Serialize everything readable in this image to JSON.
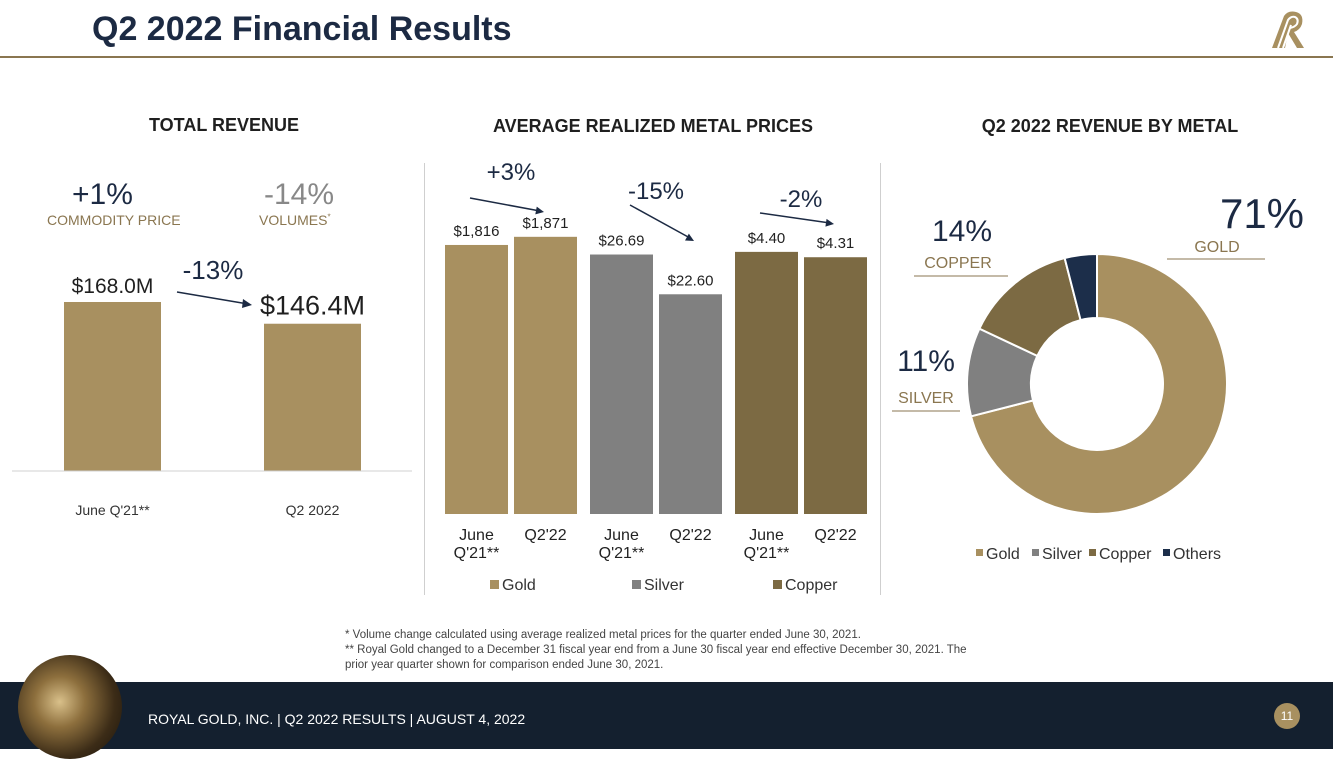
{
  "header": {
    "title": "Q2 2022 Financial Results",
    "logo_icon": "royal-gold-logo-icon"
  },
  "colors": {
    "gold": "#a89060",
    "silver": "#808080",
    "copper": "#7c6a43",
    "others": "#1c2e4a",
    "navy": "#1c2a43"
  },
  "total_revenue": {
    "title": "TOTAL REVENUE",
    "commodity_change": "+1%",
    "commodity_label": "COMMODITY PRICE",
    "volume_change": "-14%",
    "volume_label": "VOLUMES",
    "volume_marker": "*",
    "overall_change": "-13%"
  },
  "metal_prices": {
    "title": "AVERAGE REALIZED METAL PRICES"
  },
  "revenue_by_metal": {
    "title": "Q2 2022 REVENUE BY METAL",
    "callouts": [
      {
        "pct": "71%",
        "label": "GOLD"
      },
      {
        "pct": "14%",
        "label": "COPPER"
      },
      {
        "pct": "11%",
        "label": "SILVER"
      }
    ]
  },
  "chart_data": [
    {
      "type": "bar",
      "title": "TOTAL REVENUE",
      "categories": [
        "June Q'21**",
        "Q2 2022"
      ],
      "values": [
        168.0,
        146.4
      ],
      "value_labels": [
        "$168.0M",
        "$146.4M"
      ],
      "unit": "$M",
      "ylim": [
        0,
        200
      ]
    },
    {
      "type": "bar",
      "title": "AVERAGE REALIZED METAL PRICES",
      "groups": [
        {
          "name": "Gold",
          "categories": [
            "June Q'21**",
            "Q2'22"
          ],
          "values": [
            1816,
            1871
          ],
          "value_labels": [
            "$1,816",
            "$1,871"
          ],
          "change": "+3%"
        },
        {
          "name": "Silver",
          "categories": [
            "June Q'21**",
            "Q2'22"
          ],
          "values": [
            26.69,
            22.6
          ],
          "value_labels": [
            "$26.69",
            "$22.60"
          ],
          "change": "-15%"
        },
        {
          "name": "Copper",
          "categories": [
            "June Q'21**",
            "Q2'22"
          ],
          "values": [
            4.4,
            4.31
          ],
          "value_labels": [
            "$4.40",
            "$4.31"
          ],
          "change": "-2%"
        }
      ],
      "legend": [
        "Gold",
        "Silver",
        "Copper"
      ]
    },
    {
      "type": "pie",
      "title": "Q2 2022 REVENUE BY METAL",
      "labels": [
        "Gold",
        "Silver",
        "Copper",
        "Others"
      ],
      "values": [
        71,
        11,
        14,
        4
      ],
      "legend": [
        "Gold",
        "Silver",
        "Copper",
        "Others"
      ]
    }
  ],
  "footnotes": [
    "*  Volume change calculated using average realized metal prices for the quarter ended June 30, 2021.",
    "**  Royal Gold changed to a December 31 fiscal year end from a June 30 fiscal year end effective December 30, 2021.  The",
    "prior year quarter shown for comparison ended June 30, 2021."
  ],
  "footer": {
    "text": "ROYAL GOLD, INC.   |   Q2 2022 RESULTS  |   AUGUST 4, 2022",
    "page_number": "11"
  }
}
